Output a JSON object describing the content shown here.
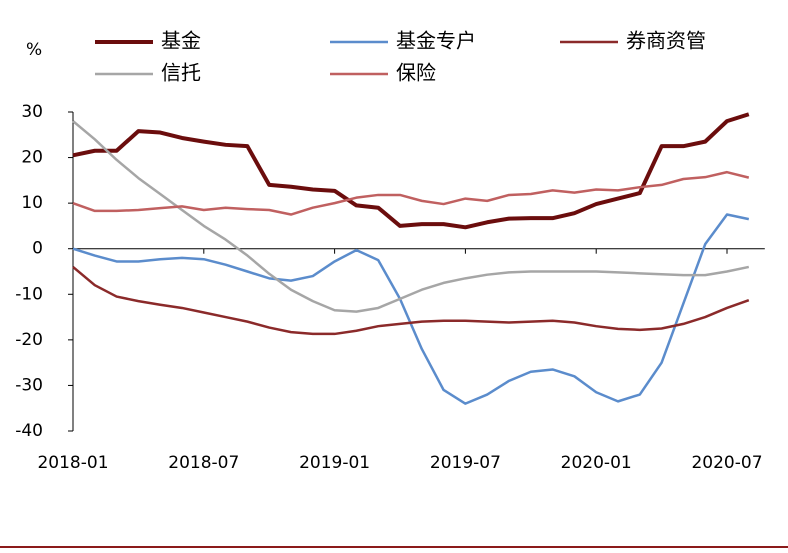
{
  "chart_data": {
    "type": "line",
    "y_label": "%",
    "categories": [
      "2018-01",
      null,
      null,
      null,
      null,
      null,
      "2018-07",
      null,
      null,
      null,
      null,
      null,
      "2019-01",
      null,
      null,
      null,
      null,
      null,
      "2019-07",
      null,
      null,
      null,
      null,
      null,
      "2020-01",
      null,
      null,
      null,
      null,
      null,
      "2020-07",
      null
    ],
    "ylim": [
      -40,
      30
    ],
    "yticks": [
      30,
      20,
      10,
      0,
      -10,
      -20,
      -30,
      -40
    ],
    "grid": false,
    "series": [
      {
        "name": "基金",
        "color": "#6b0d0d",
        "values": [
          20.5,
          21.5,
          21.5,
          25.8,
          25.5,
          24.3,
          23.5,
          22.8,
          22.5,
          14,
          13.6,
          13,
          12.7,
          9.5,
          9,
          5,
          5.4,
          5.4,
          4.7,
          5.8,
          6.6,
          6.7,
          6.7,
          7.8,
          9.8,
          11,
          12.2,
          22.5,
          22.5,
          23.5,
          28,
          29.5
        ]
      },
      {
        "name": "基金专户",
        "color": "#5b8ccc",
        "values": [
          0,
          -1.5,
          -2.8,
          -2.8,
          -2.3,
          -2,
          -2.3,
          -3.5,
          -5,
          -6.5,
          -7,
          -6,
          -2.8,
          -0.3,
          -2.5,
          -11,
          -22,
          -31,
          -34,
          -32,
          -29,
          -27,
          -26.5,
          -28,
          -31.5,
          -33.5,
          -32,
          -25,
          -12,
          1,
          7.5,
          6.5
        ]
      },
      {
        "name": "券商资管",
        "color": "#8b2a2a",
        "values": [
          -4,
          -8,
          -10.5,
          -11.5,
          -12.3,
          -13,
          -14,
          -15,
          -16,
          -17.3,
          -18.3,
          -18.7,
          -18.7,
          -18,
          -17,
          -16.5,
          -16,
          -15.8,
          -15.8,
          -16,
          -16.2,
          -16,
          -15.8,
          -16.2,
          -17,
          -17.6,
          -17.8,
          -17.5,
          -16.5,
          -15,
          -13,
          -11.3
        ]
      },
      {
        "name": "信托",
        "color": "#a6a6a6",
        "values": [
          28,
          24,
          19.5,
          15.5,
          12,
          8.5,
          5,
          2,
          -1.5,
          -5.5,
          -9,
          -11.5,
          -13.5,
          -13.8,
          -13,
          -11,
          -9,
          -7.5,
          -6.5,
          -5.7,
          -5.2,
          -5,
          -5,
          -5,
          -5,
          -5.2,
          -5.4,
          -5.6,
          -5.8,
          -5.8,
          -5,
          -4
        ]
      },
      {
        "name": "保险",
        "color": "#c06060",
        "values": [
          10,
          8.3,
          8.3,
          8.5,
          8.9,
          9.3,
          8.5,
          9,
          8.7,
          8.5,
          7.5,
          9,
          10,
          11.2,
          11.8,
          11.8,
          10.5,
          9.8,
          11,
          10.5,
          11.8,
          12,
          12.8,
          12.3,
          13,
          12.8,
          13.5,
          14,
          15.3,
          15.7,
          16.8,
          15.6
        ]
      }
    ]
  }
}
